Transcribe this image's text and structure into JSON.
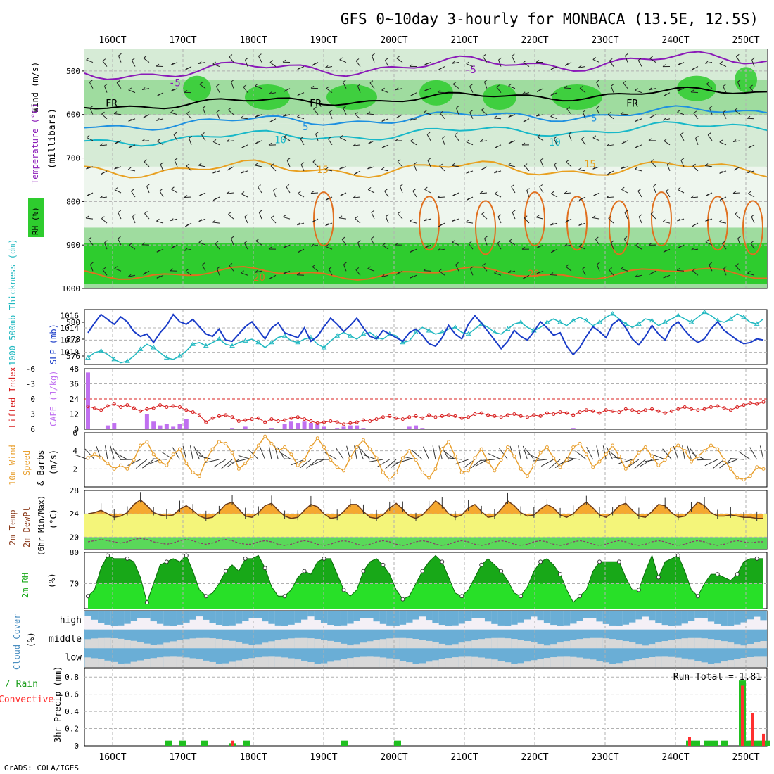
{
  "title": "GFS 0~10day 3-hourly for MONBACA (13.5E, 12.5S)",
  "credit": "GrADS: COLA/IGES",
  "time_axis": {
    "tick_labels": [
      "16OCT",
      "17OCT",
      "18OCT",
      "19OCT",
      "20OCT",
      "21OCT",
      "22OCT",
      "23OCT",
      "24OCT",
      "25OCT"
    ],
    "start_day": 15.6,
    "end_day": 25.3
  },
  "colors": {
    "rh_green": "#2ecc2e",
    "rh_mid": "#9fdc9f",
    "rh_light": "#d6ebd6",
    "temp_iso": "#e8a020",
    "temp_cold": "#8a1ab8",
    "temp_blue": "#1e90e0",
    "temp_cyan": "#18b8c8",
    "temp_warm": "#e07020",
    "slp_blue": "#1a3cc8",
    "thick_cyan": "#20b8c0",
    "cape_violet": "#c070f0",
    "li_red": "#d82020",
    "wind_orange": "#e8a030",
    "temp_fill_yellow": "#f4f57a",
    "temp_fill_orange": "#f5a830",
    "dew_green": "#5ad85a",
    "rh2m_dark": "#18a818",
    "rh2m_light": "#28e028",
    "cloud_blue": "#6aaed6",
    "cloud_gray": "#d8d8d8",
    "cloud_white": "#f4f0f6",
    "precip_green": "#20c020",
    "precip_red": "#ff3030"
  },
  "panels": {
    "upper": {
      "ylabel_main": "(millibars)",
      "label_wind": "Wind (m/s)",
      "label_temp": "Temperature (°C)",
      "label_rh": "RH (%)",
      "y_ticks": [
        "500",
        "600",
        "700",
        "800",
        "900",
        "1000"
      ],
      "contour_labels": [
        "-5",
        "FR",
        "5",
        "10",
        "15",
        "20",
        "50",
        "30"
      ]
    },
    "slp": {
      "label_thick": "1000-500mb Thickness (dm)",
      "label_slp": "SLP (mb)",
      "left_ticks": [
        "580",
        "578",
        "576"
      ],
      "right_ticks": [
        "1016",
        "1014",
        "1012",
        "1010"
      ]
    },
    "cape": {
      "label_li": "Lifted Index",
      "label_cape": "CAPE (J/kg)",
      "li_ticks": [
        "-6",
        "-3",
        "0",
        "3",
        "6"
      ],
      "cape_ticks": [
        "48",
        "36",
        "24",
        "12",
        "0"
      ]
    },
    "wind10": {
      "label_a": "10m Wind",
      "label_b": "Speed",
      "label_c": "& Barbs",
      "label_d": "(m/s)",
      "ticks": [
        "6",
        "4",
        "2"
      ]
    },
    "temp2m": {
      "label_a": "2m Temp",
      "label_b": "2m DewPt",
      "label_c": "(6hr Min/Max)",
      "label_d": "(°C)",
      "ticks": [
        "28",
        "24",
        "20"
      ]
    },
    "rh2m": {
      "label_a": "2m RH",
      "label_b": "(%)",
      "ticks": [
        "80",
        "70"
      ]
    },
    "cloud": {
      "label_a": "Cloud Cover",
      "label_b": "(%)",
      "levels": [
        "high",
        "middle",
        "low"
      ]
    },
    "precip": {
      "label_total": "Total / Rain",
      "label_conv": "Convective",
      "label_y": "3hr Precip (mm)",
      "ticks": [
        "0.8",
        "0.6",
        "0.4",
        "0.2",
        "0"
      ],
      "run_total": "Run Total = 1.81"
    }
  },
  "chart_data": [
    {
      "type": "line",
      "name": "SLP (mb)",
      "ylim": [
        1008,
        1017
      ],
      "values": [
        1013.2,
        1014.8,
        1016.2,
        1015.4,
        1014.6,
        1015.8,
        1015.0,
        1013.4,
        1012.6,
        1013.0,
        1011.6,
        1013.2,
        1014.4,
        1016.2,
        1015.0,
        1014.6,
        1015.4,
        1014.2,
        1013.0,
        1012.6,
        1013.8,
        1012.0,
        1011.8,
        1013.0,
        1014.2,
        1015.0,
        1013.6,
        1012.2,
        1014.0,
        1014.8,
        1013.2,
        1012.8,
        1012.4,
        1014.0,
        1011.8,
        1012.6,
        1014.2,
        1015.6,
        1014.6,
        1013.4,
        1014.4,
        1015.6,
        1014.0,
        1012.6,
        1012.2,
        1013.6,
        1013.0,
        1012.4,
        1011.8,
        1013.2,
        1013.8,
        1012.8,
        1011.4,
        1011.0,
        1012.4,
        1014.4,
        1013.0,
        1012.2,
        1014.6,
        1016.0,
        1014.8,
        1013.4,
        1012.0,
        1010.6,
        1011.8,
        1013.6,
        1012.6,
        1012.0,
        1013.4,
        1015.0,
        1014.0,
        1012.8,
        1013.2,
        1011.0,
        1009.6,
        1010.8,
        1012.6,
        1014.2,
        1013.4,
        1012.4,
        1014.6,
        1015.4,
        1014.0,
        1012.2,
        1011.2,
        1012.6,
        1014.4,
        1013.0,
        1012.0,
        1014.2,
        1015.0,
        1013.6,
        1012.4,
        1011.6,
        1012.2,
        1013.8,
        1015.0,
        1013.6,
        1012.8,
        1012.0,
        1011.4,
        1011.6,
        1012.2,
        1012.0
      ]
    },
    {
      "type": "line",
      "name": "1000-500mb Thickness (dm)",
      "ylim": [
        575,
        581.5
      ],
      "values": [
        575.8,
        576.4,
        576.6,
        576.2,
        575.6,
        575.2,
        575.4,
        576.0,
        576.8,
        577.4,
        577.0,
        576.4,
        575.8,
        575.6,
        576.0,
        576.6,
        577.4,
        577.6,
        577.2,
        577.6,
        578.0,
        577.4,
        577.2,
        577.6,
        577.8,
        578.0,
        577.6,
        577.0,
        577.6,
        578.2,
        578.4,
        577.8,
        577.6,
        578.0,
        578.2,
        577.4,
        577.0,
        577.8,
        578.4,
        578.8,
        578.4,
        578.0,
        578.6,
        578.8,
        578.2,
        578.0,
        578.6,
        578.4,
        577.6,
        577.8,
        578.8,
        579.4,
        579.0,
        578.6,
        578.8,
        579.2,
        579.4,
        578.8,
        578.6,
        579.2,
        579.8,
        579.4,
        578.8,
        578.6,
        579.2,
        579.8,
        580.0,
        579.4,
        579.0,
        579.4,
        580.0,
        580.4,
        580.0,
        579.6,
        580.2,
        580.6,
        580.2,
        579.6,
        580.0,
        580.6,
        581.0,
        580.4,
        579.8,
        579.4,
        579.8,
        580.4,
        580.2,
        579.6,
        580.0,
        580.4,
        580.8,
        580.4,
        580.0,
        580.6,
        581.2,
        580.8,
        580.2,
        580.0,
        580.4,
        581.0,
        580.6,
        580.0,
        579.8,
        580.4
      ]
    },
    {
      "type": "line",
      "name": "Lifted Index",
      "ylim": [
        6,
        -6
      ],
      "values": [
        1.5,
        1.8,
        2.2,
        1.4,
        1.0,
        1.6,
        1.2,
        1.8,
        2.4,
        2.0,
        1.8,
        1.2,
        1.6,
        1.4,
        1.6,
        2.2,
        2.6,
        3.2,
        4.6,
        3.8,
        3.4,
        3.2,
        3.6,
        4.4,
        4.2,
        4.0,
        3.8,
        4.6,
        4.0,
        4.4,
        4.2,
        3.8,
        3.6,
        4.0,
        4.4,
        4.8,
        4.6,
        4.4,
        4.6,
        5.0,
        4.8,
        4.6,
        4.2,
        4.4,
        4.0,
        3.6,
        3.4,
        3.8,
        4.0,
        3.6,
        3.4,
        3.8,
        3.2,
        3.6,
        3.4,
        3.2,
        3.4,
        3.8,
        3.6,
        3.0,
        2.8,
        3.2,
        3.4,
        3.6,
        3.2,
        3.0,
        3.4,
        3.6,
        3.2,
        3.4,
        2.8,
        3.0,
        2.6,
        2.8,
        3.2,
        2.6,
        2.2,
        2.4,
        2.8,
        2.2,
        2.4,
        2.6,
        2.0,
        2.2,
        2.6,
        2.2,
        2.0,
        2.4,
        2.8,
        2.4,
        2.0,
        1.6,
        2.0,
        2.2,
        2.0,
        1.6,
        1.4,
        1.8,
        2.2,
        1.6,
        1.2,
        0.8,
        1.0,
        0.6
      ]
    },
    {
      "type": "bar",
      "name": "CAPE (J/kg)",
      "ylim": [
        0,
        48
      ],
      "values": [
        45,
        0,
        0,
        3,
        5,
        0,
        0,
        0,
        0,
        12,
        6,
        3,
        4,
        2,
        4,
        8,
        0,
        0,
        0,
        0,
        0,
        0,
        1,
        0,
        2,
        0,
        0,
        0,
        1,
        0,
        4,
        6,
        5,
        6,
        5,
        4,
        2,
        0,
        1,
        2,
        3,
        3,
        1,
        0,
        0,
        0,
        0,
        0,
        0,
        2,
        3,
        1,
        0,
        0,
        0,
        0,
        0,
        0,
        0,
        0,
        0,
        0,
        0,
        0,
        0,
        0,
        0,
        0,
        0,
        0,
        0,
        0,
        0,
        0,
        1,
        0,
        0,
        0,
        0,
        0,
        0,
        0,
        0,
        0,
        0,
        0,
        0,
        0,
        0,
        0,
        0,
        0,
        0,
        0,
        0,
        0,
        0,
        0,
        0,
        0,
        0,
        0,
        0,
        0
      ]
    },
    {
      "type": "line",
      "name": "10m Wind Speed (m/s)",
      "ylim": [
        0,
        6
      ],
      "values": [
        3.2,
        3.6,
        3.2,
        2.6,
        2.0,
        2.4,
        2.0,
        3.0,
        4.6,
        5.0,
        3.6,
        2.8,
        2.4,
        3.6,
        4.2,
        2.6,
        1.6,
        1.2,
        3.0,
        4.2,
        5.0,
        4.8,
        3.8,
        2.0,
        2.6,
        3.4,
        4.6,
        5.6,
        4.8,
        4.0,
        4.4,
        3.6,
        2.4,
        3.0,
        4.4,
        5.4,
        4.4,
        3.0,
        2.2,
        1.8,
        3.2,
        4.4,
        5.2,
        4.2,
        3.2,
        1.6,
        0.8,
        1.6,
        3.2,
        4.0,
        3.0,
        1.6,
        1.0,
        2.0,
        4.2,
        5.0,
        3.4,
        1.6,
        1.8,
        3.2,
        4.2,
        2.8,
        1.8,
        3.0,
        4.4,
        3.4,
        2.0,
        1.2,
        2.4,
        3.8,
        4.4,
        3.2,
        2.2,
        3.0,
        4.4,
        4.8,
        3.6,
        2.2,
        2.8,
        3.6,
        4.6,
        3.4,
        2.0,
        2.8,
        3.8,
        4.4,
        3.4,
        2.4,
        3.0,
        4.2,
        4.6,
        4.0,
        2.8,
        3.4,
        4.0,
        4.6,
        4.2,
        3.0,
        2.0,
        1.0,
        0.8,
        1.2,
        2.2,
        2.0
      ]
    },
    {
      "type": "area",
      "name": "2m Temp (°C)",
      "ylim": [
        18,
        28
      ],
      "values": [
        24.0,
        24.2,
        24.6,
        24.0,
        23.4,
        23.6,
        24.2,
        25.6,
        26.4,
        25.4,
        24.2,
        23.8,
        23.6,
        23.8,
        24.8,
        25.4,
        24.6,
        23.6,
        23.2,
        23.4,
        24.4,
        25.6,
        26.0,
        24.8,
        23.6,
        23.4,
        24.2,
        25.4,
        25.8,
        24.6,
        23.6,
        23.2,
        23.4,
        24.6,
        25.6,
        25.2,
        24.0,
        23.2,
        23.4,
        24.4,
        25.6,
        25.6,
        24.4,
        23.4,
        23.2,
        23.8,
        25.0,
        25.8,
        24.8,
        23.6,
        23.2,
        23.8,
        25.0,
        26.2,
        25.4,
        24.0,
        23.4,
        23.8,
        25.0,
        25.6,
        24.4,
        23.4,
        23.6,
        24.8,
        26.2,
        25.4,
        24.2,
        23.6,
        23.8,
        24.8,
        25.6,
        25.0,
        23.8,
        23.4,
        24.0,
        25.2,
        26.0,
        25.0,
        23.8,
        23.4,
        24.2,
        25.4,
        25.8,
        24.6,
        23.6,
        23.4,
        24.4,
        25.6,
        25.4,
        24.2,
        23.4,
        23.6,
        24.8,
        26.0,
        25.4,
        24.2,
        23.6,
        23.6,
        23.8,
        23.6,
        23.4,
        23.4,
        23.2,
        23.2
      ]
    },
    {
      "type": "line",
      "name": "2m DewPt (°C)",
      "ylim": [
        18,
        28
      ],
      "values": [
        19.2,
        19.4,
        19.6,
        19.4,
        19.2,
        19.0,
        19.2,
        19.6,
        19.8,
        19.6,
        19.2,
        19.0,
        18.8,
        19.0,
        19.4,
        19.6,
        19.4,
        19.0,
        18.8,
        19.0,
        19.4,
        19.6,
        19.4,
        19.0,
        18.8,
        18.8,
        19.2,
        19.4,
        19.2,
        18.8,
        18.6,
        18.8,
        19.2,
        19.4,
        19.2,
        18.8,
        18.6,
        18.8,
        19.2,
        19.4,
        19.2,
        18.8,
        18.6,
        18.8,
        19.2,
        19.4,
        19.2,
        18.8,
        18.6,
        18.8,
        19.2,
        19.4,
        19.2,
        18.8,
        18.6,
        18.8,
        19.2,
        19.4,
        19.2,
        18.8,
        18.6,
        18.8,
        19.2,
        19.4,
        19.2,
        18.8,
        18.6,
        18.8,
        19.2,
        19.4,
        19.2,
        18.8,
        18.6,
        18.8,
        19.2,
        19.4,
        19.2,
        18.8,
        18.6,
        18.8,
        19.2,
        19.4,
        19.2,
        18.8,
        18.6,
        18.8,
        19.2,
        19.4,
        19.2,
        18.8,
        18.6,
        18.8,
        19.2,
        19.4,
        19.2,
        18.8,
        18.6,
        18.8,
        19.2,
        19.4,
        19.2,
        19.0,
        19.2,
        19.2
      ]
    },
    {
      "type": "area",
      "name": "2m RH (%)",
      "ylim": [
        62,
        80
      ],
      "values": [
        66,
        68,
        75,
        79,
        78,
        78,
        78,
        77,
        72,
        64,
        70,
        76,
        77,
        78,
        77,
        79,
        74,
        68,
        66,
        67,
        70,
        74,
        76,
        74,
        78,
        78,
        79,
        75,
        69,
        66,
        66,
        68,
        72,
        74,
        73,
        77,
        78,
        78,
        73,
        68,
        66,
        68,
        74,
        77,
        78,
        76,
        73,
        68,
        65,
        66,
        70,
        74,
        77,
        79,
        77,
        72,
        67,
        66,
        68,
        72,
        76,
        78,
        76,
        74,
        71,
        67,
        66,
        69,
        74,
        77,
        78,
        76,
        73,
        68,
        64,
        66,
        68,
        74,
        77,
        77,
        77,
        77,
        72,
        68,
        68,
        74,
        79,
        72,
        77,
        78,
        79,
        74,
        68,
        66,
        70,
        73,
        73,
        72,
        71,
        73,
        77,
        78,
        78,
        78
      ]
    },
    {
      "type": "line",
      "name": "3hr Precip (mm)",
      "ylim": [
        0,
        0.9
      ],
      "total": [
        [
          16.8,
          0.06
        ],
        [
          17.0,
          0.06
        ],
        [
          17.3,
          0.06
        ],
        [
          17.7,
          0.03
        ],
        [
          17.9,
          0.06
        ],
        [
          19.3,
          0.06
        ],
        [
          20.05,
          0.06
        ],
        [
          24.2,
          0.06
        ],
        [
          24.3,
          0.06
        ],
        [
          24.45,
          0.06
        ],
        [
          24.55,
          0.06
        ],
        [
          24.7,
          0.06
        ],
        [
          24.95,
          0.76
        ],
        [
          25.05,
          0.06
        ],
        [
          25.1,
          0.06
        ],
        [
          25.2,
          0.06
        ],
        [
          25.3,
          0.06
        ]
      ],
      "annotation": "Run Total = 1.81"
    }
  ]
}
